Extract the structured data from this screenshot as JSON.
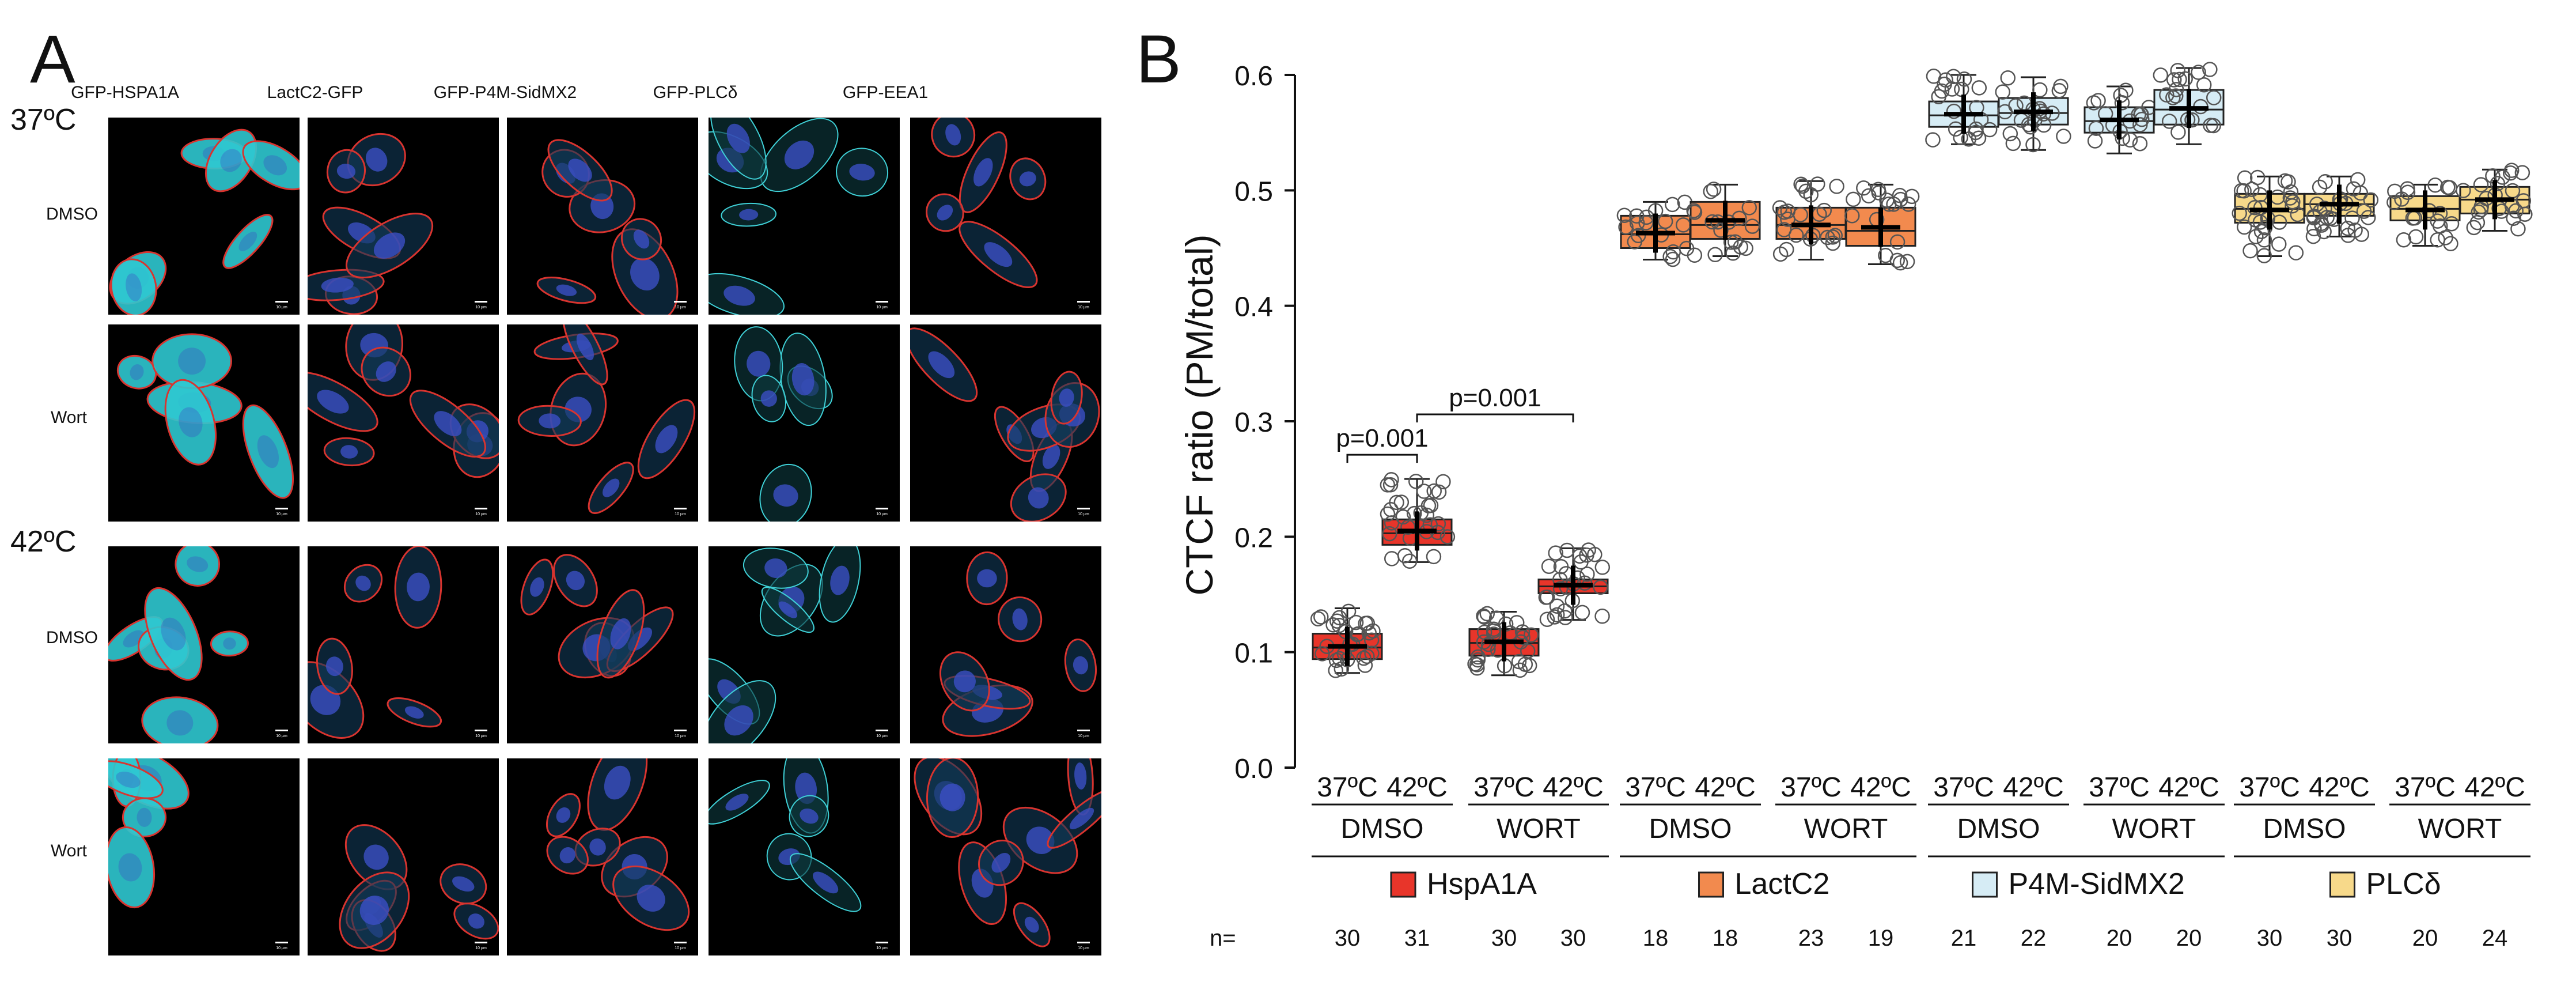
{
  "panel_a": {
    "letter": "A",
    "columns": [
      "GFP-HSPA1A",
      "LactC2-GFP",
      "GFP-P4M-SidMX2",
      "GFP-PLCδ",
      "GFP-EEA1"
    ],
    "temps": [
      "37ºC",
      "42ºC"
    ],
    "rows": [
      "DMSO",
      "Wort",
      "DMSO",
      "Wort"
    ],
    "scale_bar_label": "10 µm"
  },
  "panel_b": {
    "letter": "B"
  },
  "chart_data": {
    "type": "box",
    "ylabel": "CTCF ratio (PM/total)",
    "ylim": [
      0,
      0.6
    ],
    "yticks": [
      "0.0",
      "0.1",
      "0.2",
      "0.3",
      "0.4",
      "0.5",
      "0.6"
    ],
    "temp_labels": [
      "37ºC",
      "42ºC"
    ],
    "n_prefix": "n=",
    "probes": [
      {
        "name": "HspA1A",
        "color": "#e8352a",
        "groups": [
          {
            "treatment": "DMSO",
            "boxes": [
              {
                "temp": "37ºC",
                "n": "30",
                "q1": 0.094,
                "median": 0.104,
                "q3": 0.116,
                "min": 0.082,
                "max": 0.138,
                "mean": 0.105
              },
              {
                "temp": "42ºC",
                "n": "31",
                "q1": 0.193,
                "median": 0.203,
                "q3": 0.215,
                "min": 0.178,
                "max": 0.25,
                "mean": 0.205
              }
            ]
          },
          {
            "treatment": "WORT",
            "boxes": [
              {
                "temp": "37ºC",
                "n": "30",
                "q1": 0.097,
                "median": 0.108,
                "q3": 0.12,
                "min": 0.08,
                "max": 0.135,
                "mean": 0.109
              },
              {
                "temp": "42ºC",
                "n": "30",
                "q1": 0.151,
                "median": 0.157,
                "q3": 0.163,
                "min": 0.128,
                "max": 0.19,
                "mean": 0.158
              }
            ]
          }
        ]
      },
      {
        "name": "LactC2",
        "color": "#f28a4e",
        "groups": [
          {
            "treatment": "DMSO",
            "boxes": [
              {
                "temp": "37ºC",
                "n": "18",
                "q1": 0.45,
                "median": 0.462,
                "q3": 0.478,
                "min": 0.44,
                "max": 0.49,
                "mean": 0.463
              },
              {
                "temp": "42ºC",
                "n": "18",
                "q1": 0.458,
                "median": 0.47,
                "q3": 0.49,
                "min": 0.443,
                "max": 0.505,
                "mean": 0.474
              }
            ]
          },
          {
            "treatment": "WORT",
            "boxes": [
              {
                "temp": "37ºC",
                "n": "23",
                "q1": 0.458,
                "median": 0.47,
                "q3": 0.485,
                "min": 0.44,
                "max": 0.508,
                "mean": 0.47
              }
            ]
          },
          {
            "treatment": "",
            "boxes": [
              {
                "temp": "42ºC",
                "n": "19",
                "q1": 0.452,
                "median": 0.465,
                "q3": 0.485,
                "min": 0.436,
                "max": 0.505,
                "mean": 0.468
              }
            ]
          }
        ]
      },
      {
        "name": "P4M-SidMX2",
        "color": "#d6ecf5",
        "groups": [
          {
            "treatment": "DMSO",
            "boxes": [
              {
                "temp": "37ºC",
                "n": "21",
                "q1": 0.555,
                "median": 0.565,
                "q3": 0.577,
                "min": 0.54,
                "max": 0.6,
                "mean": 0.566
              },
              {
                "temp": "42ºC",
                "n": "22",
                "q1": 0.557,
                "median": 0.567,
                "q3": 0.58,
                "min": 0.535,
                "max": 0.598,
                "mean": 0.568
              }
            ]
          },
          {
            "treatment": "WORT",
            "boxes": [
              {
                "temp": "37ºC",
                "n": "20",
                "q1": 0.55,
                "median": 0.56,
                "q3": 0.572,
                "min": 0.532,
                "max": 0.59,
                "mean": 0.561
              },
              {
                "temp": "42ºC",
                "n": "20",
                "q1": 0.557,
                "median": 0.57,
                "q3": 0.587,
                "min": 0.54,
                "max": 0.606,
                "mean": 0.571
              }
            ]
          }
        ]
      },
      {
        "name": "PLCδ",
        "color": "#f7d98a",
        "groups": [
          {
            "treatment": "DMSO",
            "boxes": [
              {
                "temp": "37ºC",
                "n": "30",
                "q1": 0.472,
                "median": 0.484,
                "q3": 0.497,
                "min": 0.443,
                "max": 0.512,
                "mean": 0.483
              },
              {
                "temp": "42ºC",
                "n": "30",
                "q1": 0.478,
                "median": 0.488,
                "q3": 0.497,
                "min": 0.46,
                "max": 0.512,
                "mean": 0.488
              }
            ]
          },
          {
            "treatment": "WORT",
            "boxes": [
              {
                "temp": "37ºC",
                "n": "20",
                "q1": 0.474,
                "median": 0.484,
                "q3": 0.495,
                "min": 0.452,
                "max": 0.505,
                "mean": 0.483
              },
              {
                "temp": "42ºC",
                "n": "24",
                "q1": 0.48,
                "median": 0.492,
                "q3": 0.503,
                "min": 0.465,
                "max": 0.518,
                "mean": 0.492
              }
            ]
          }
        ]
      }
    ],
    "annotations": [
      {
        "text": "p=0.001",
        "from": [
          0,
          0
        ],
        "to": [
          0,
          1
        ],
        "y": 0.271
      },
      {
        "text": "p=0.001",
        "from": [
          0,
          1
        ],
        "to": [
          1,
          1
        ],
        "y": 0.306
      }
    ]
  }
}
